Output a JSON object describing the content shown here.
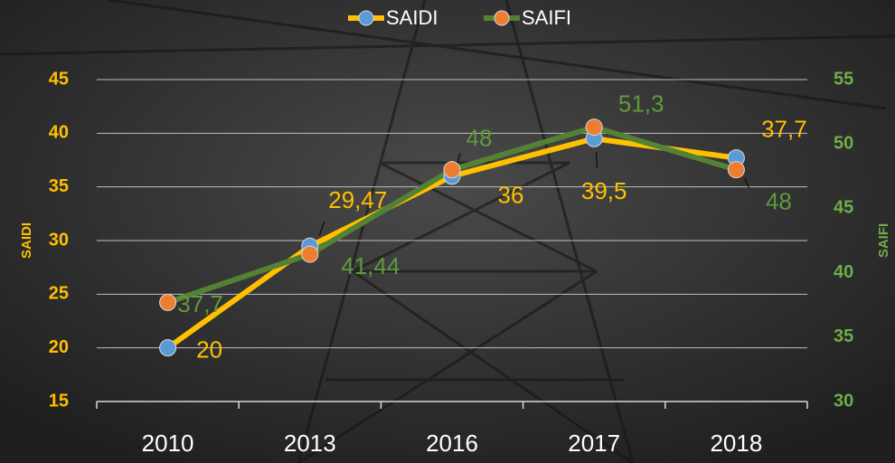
{
  "chart_data": {
    "type": "line",
    "categories": [
      "2010",
      "2013",
      "2016",
      "2017",
      "2018"
    ],
    "series": [
      {
        "name": "SAIDI",
        "color": "#ffc000",
        "marker_color": "#5b9bd5",
        "values": [
          20,
          29.47,
          36,
          39.5,
          37.7
        ],
        "value_labels": [
          "20",
          "29,47",
          "36",
          "39,5",
          "37,7"
        ]
      },
      {
        "name": "SAIFI",
        "color": "#548235",
        "marker_color": "#ed7d31",
        "axis": "y2",
        "values": [
          37.7,
          41.44,
          48,
          51.3,
          48
        ],
        "value_labels": [
          "37,7",
          "41,44",
          "48",
          "51,3",
          "48"
        ]
      }
    ],
    "ylabel": "SAIDI",
    "y2label": "SAIFI",
    "ylim": [
      15,
      45
    ],
    "yticks": [
      15,
      20,
      25,
      30,
      35,
      40,
      45
    ],
    "y2lim": [
      30,
      55
    ],
    "y2ticks": [
      30,
      35,
      40,
      45,
      50,
      55
    ],
    "grid": true,
    "legend": "top"
  }
}
